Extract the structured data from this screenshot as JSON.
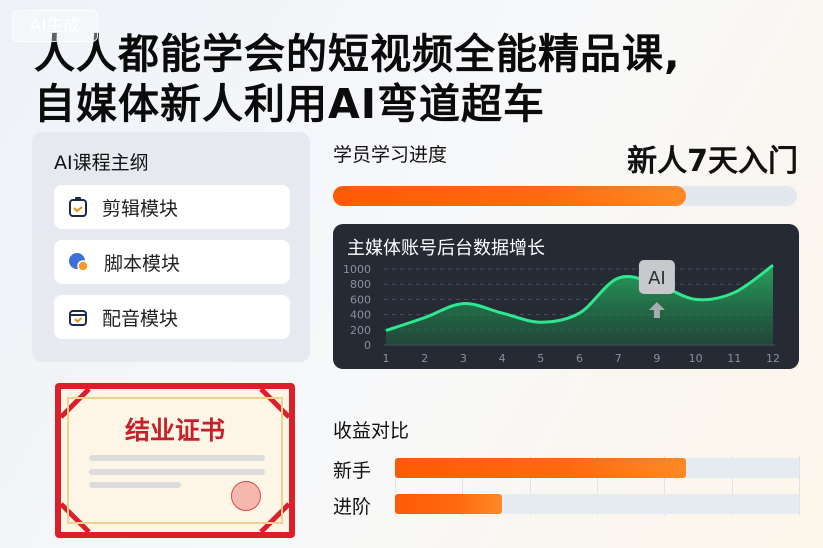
{
  "watermark": "AI生成",
  "headline": {
    "line1": "人人都能学会的短视频全能精品课,",
    "line2": "自媒体新人利用AI弯道超车"
  },
  "syllabus": {
    "title": "AI课程主纲",
    "items": [
      {
        "label": "剪辑模块",
        "icon": "clipboard-check-icon"
      },
      {
        "label": "脚本模块",
        "icon": "chat-bubble-icon"
      },
      {
        "label": "配音模块",
        "icon": "folder-check-icon"
      }
    ]
  },
  "certificate": {
    "title": "结业证书"
  },
  "progress": {
    "label": "学员学习进度",
    "headline": "新人7天入门",
    "percent": 76
  },
  "colors": {
    "accent": "#ff5a06",
    "chart_bg": "#252a35",
    "line": "#2ee88f",
    "cert_red": "#dc1f2a"
  },
  "chart_data": {
    "type": "area",
    "title": "主媒体账号后台数据增长",
    "categories": [
      "1",
      "2",
      "3",
      "4",
      "5",
      "6",
      "7",
      "9",
      "10",
      "11",
      "12"
    ],
    "values": [
      190,
      360,
      545,
      420,
      300,
      420,
      880,
      800,
      600,
      690,
      1050
    ],
    "yticks": [
      "0",
      "200",
      "400",
      "600",
      "800",
      "1000"
    ],
    "ylim": [
      0,
      1000
    ],
    "grid": true,
    "badge": "AI"
  },
  "revenue": {
    "title": "收益对比",
    "rows": [
      {
        "label": "新手",
        "percent": 72
      },
      {
        "label": "进阶",
        "percent": 26.5
      }
    ]
  }
}
